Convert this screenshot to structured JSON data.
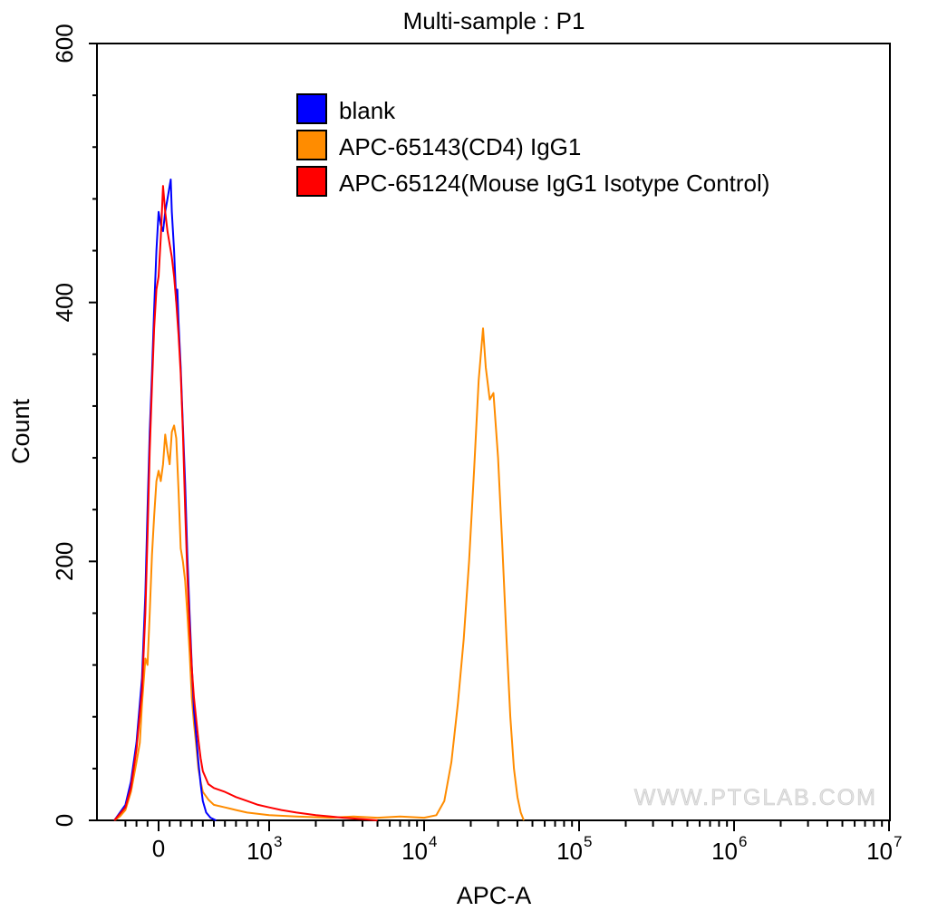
{
  "chart_data": {
    "type": "line",
    "title": "Multi-sample : P1",
    "xlabel": "APC-A",
    "ylabel": "Count",
    "x_scale": "biexponential",
    "ylim": [
      0,
      600
    ],
    "xlim": [
      -300,
      10000000
    ],
    "grid": false,
    "legend_position": "top-right",
    "y_ticks": [
      {
        "value": 0,
        "label": "0"
      },
      {
        "value": 200,
        "label": "200"
      },
      {
        "value": 400,
        "label": "400"
      },
      {
        "value": 600,
        "label": "600"
      }
    ],
    "x_ticks": [
      {
        "value": 0,
        "base": "0",
        "exp": ""
      },
      {
        "value": 1000,
        "base": "10",
        "exp": "3"
      },
      {
        "value": 10000,
        "base": "10",
        "exp": "4"
      },
      {
        "value": 100000,
        "base": "10",
        "exp": "5"
      },
      {
        "value": 1000000,
        "base": "10",
        "exp": "6"
      },
      {
        "value": 10000000,
        "base": "10",
        "exp": "7"
      }
    ],
    "series": [
      {
        "name": "blank",
        "color": "#0000ff",
        "points": [
          [
            -400,
            0
          ],
          [
            -350,
            6
          ],
          [
            -300,
            12
          ],
          [
            -250,
            30
          ],
          [
            -200,
            60
          ],
          [
            -150,
            110
          ],
          [
            -120,
            175
          ],
          [
            -100,
            240
          ],
          [
            -80,
            300
          ],
          [
            -60,
            345
          ],
          [
            -40,
            395
          ],
          [
            -20,
            440
          ],
          [
            0,
            470
          ],
          [
            20,
            460
          ],
          [
            40,
            455
          ],
          [
            60,
            470
          ],
          [
            80,
            480
          ],
          [
            100,
            490
          ],
          [
            110,
            495
          ],
          [
            120,
            470
          ],
          [
            140,
            440
          ],
          [
            160,
            400
          ],
          [
            170,
            410
          ],
          [
            180,
            385
          ],
          [
            200,
            350
          ],
          [
            220,
            305
          ],
          [
            240,
            260
          ],
          [
            260,
            205
          ],
          [
            280,
            160
          ],
          [
            300,
            120
          ],
          [
            320,
            85
          ],
          [
            340,
            65
          ],
          [
            360,
            45
          ],
          [
            380,
            28
          ],
          [
            400,
            15
          ],
          [
            430,
            6
          ],
          [
            470,
            2
          ],
          [
            520,
            0
          ]
        ]
      },
      {
        "name": "APC-65143(CD4) IgG1",
        "color": "#ff8c00",
        "points": [
          [
            -400,
            0
          ],
          [
            -350,
            3
          ],
          [
            -300,
            8
          ],
          [
            -250,
            22
          ],
          [
            -200,
            45
          ],
          [
            -170,
            60
          ],
          [
            -150,
            90
          ],
          [
            -120,
            125
          ],
          [
            -100,
            120
          ],
          [
            -80,
            160
          ],
          [
            -60,
            205
          ],
          [
            -40,
            235
          ],
          [
            -20,
            262
          ],
          [
            0,
            270
          ],
          [
            20,
            262
          ],
          [
            40,
            275
          ],
          [
            60,
            298
          ],
          [
            80,
            285
          ],
          [
            100,
            275
          ],
          [
            120,
            300
          ],
          [
            140,
            305
          ],
          [
            160,
            295
          ],
          [
            180,
            255
          ],
          [
            200,
            210
          ],
          [
            220,
            200
          ],
          [
            240,
            185
          ],
          [
            260,
            160
          ],
          [
            280,
            130
          ],
          [
            300,
            95
          ],
          [
            320,
            75
          ],
          [
            340,
            58
          ],
          [
            360,
            40
          ],
          [
            380,
            30
          ],
          [
            400,
            22
          ],
          [
            450,
            16
          ],
          [
            500,
            12
          ],
          [
            600,
            10
          ],
          [
            700,
            8
          ],
          [
            800,
            6
          ],
          [
            1000,
            4
          ],
          [
            1500,
            3
          ],
          [
            2500,
            2
          ],
          [
            3500,
            3
          ],
          [
            5000,
            2
          ],
          [
            7000,
            3
          ],
          [
            10000,
            2
          ],
          [
            12000,
            4
          ],
          [
            13500,
            15
          ],
          [
            15000,
            45
          ],
          [
            16500,
            90
          ],
          [
            18000,
            140
          ],
          [
            19500,
            200
          ],
          [
            21000,
            270
          ],
          [
            22500,
            340
          ],
          [
            24000,
            380
          ],
          [
            25000,
            350
          ],
          [
            26500,
            325
          ],
          [
            28000,
            330
          ],
          [
            30000,
            280
          ],
          [
            32000,
            210
          ],
          [
            34000,
            140
          ],
          [
            36000,
            80
          ],
          [
            38000,
            40
          ],
          [
            40000,
            18
          ],
          [
            42000,
            6
          ],
          [
            44000,
            0
          ]
        ]
      },
      {
        "name": "APC-65124(Mouse IgG1 Isotype Control)",
        "color": "#ff0000",
        "points": [
          [
            -400,
            0
          ],
          [
            -350,
            5
          ],
          [
            -300,
            10
          ],
          [
            -250,
            25
          ],
          [
            -200,
            55
          ],
          [
            -150,
            100
          ],
          [
            -120,
            160
          ],
          [
            -100,
            220
          ],
          [
            -80,
            285
          ],
          [
            -60,
            335
          ],
          [
            -40,
            380
          ],
          [
            -20,
            410
          ],
          [
            0,
            420
          ],
          [
            20,
            450
          ],
          [
            40,
            490
          ],
          [
            60,
            470
          ],
          [
            80,
            455
          ],
          [
            100,
            445
          ],
          [
            120,
            435
          ],
          [
            140,
            420
          ],
          [
            160,
            400
          ],
          [
            180,
            375
          ],
          [
            200,
            345
          ],
          [
            220,
            300
          ],
          [
            240,
            240
          ],
          [
            260,
            190
          ],
          [
            280,
            150
          ],
          [
            300,
            118
          ],
          [
            320,
            95
          ],
          [
            340,
            78
          ],
          [
            360,
            62
          ],
          [
            380,
            48
          ],
          [
            400,
            38
          ],
          [
            450,
            28
          ],
          [
            500,
            25
          ],
          [
            600,
            22
          ],
          [
            700,
            18
          ],
          [
            800,
            15
          ],
          [
            900,
            12
          ],
          [
            1000,
            10
          ],
          [
            1200,
            8
          ],
          [
            1500,
            6
          ],
          [
            2000,
            4
          ],
          [
            2500,
            3
          ],
          [
            3000,
            2
          ],
          [
            4000,
            1
          ],
          [
            5000,
            0
          ]
        ]
      }
    ]
  },
  "watermark": "WWW.PTGLAB.COM"
}
